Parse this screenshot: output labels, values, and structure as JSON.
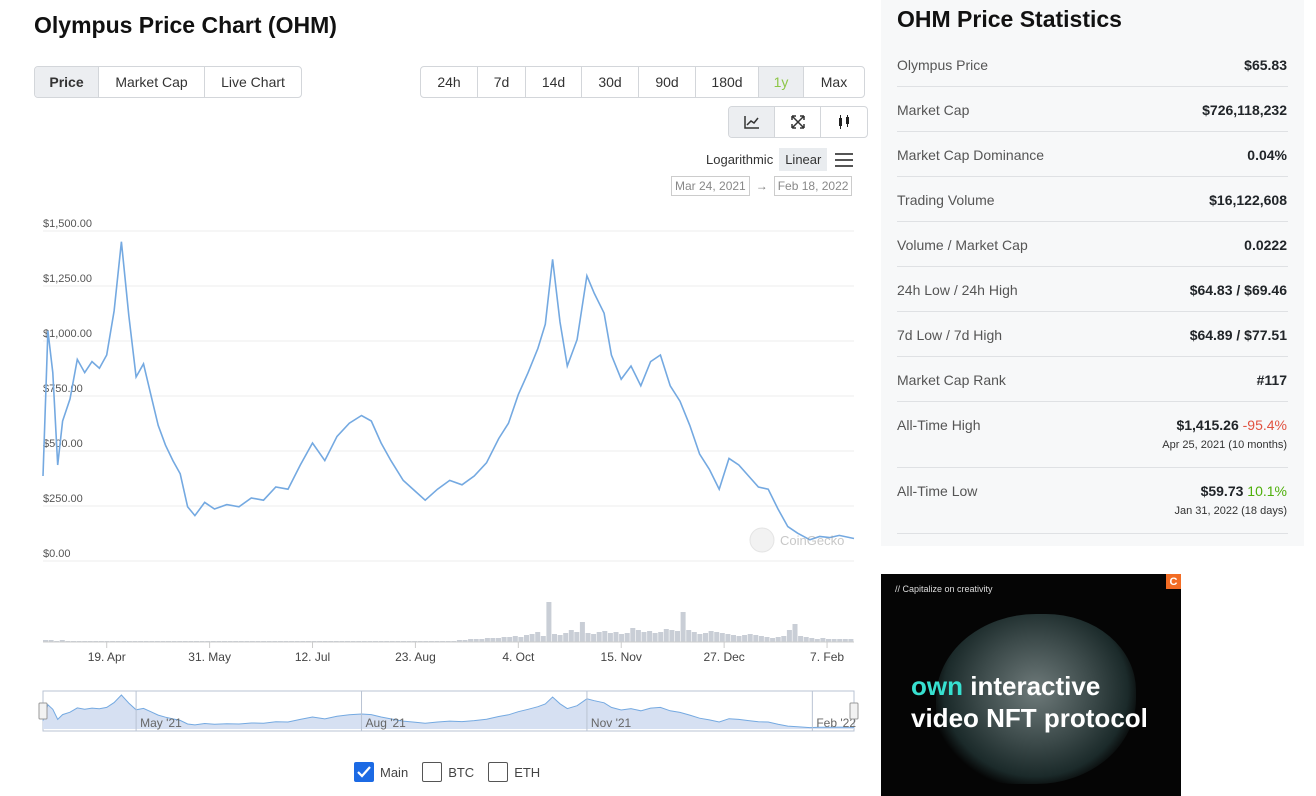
{
  "page_title": "Olympus Price Chart (OHM)",
  "chart_tabs": [
    {
      "label": "Price",
      "active": true
    },
    {
      "label": "Market Cap",
      "active": false
    },
    {
      "label": "Live Chart",
      "active": false
    }
  ],
  "ranges": [
    {
      "label": "24h",
      "active": false
    },
    {
      "label": "7d",
      "active": false
    },
    {
      "label": "14d",
      "active": false
    },
    {
      "label": "30d",
      "active": false
    },
    {
      "label": "90d",
      "active": false
    },
    {
      "label": "180d",
      "active": false
    },
    {
      "label": "1y",
      "active": true
    },
    {
      "label": "Max",
      "active": false
    }
  ],
  "chart_tools": [
    {
      "icon": "line-chart-icon",
      "active": true
    },
    {
      "icon": "expand-icon",
      "active": false
    },
    {
      "icon": "candlestick-icon",
      "active": false
    }
  ],
  "scale": {
    "log_label": "Logarithmic",
    "linear_label": "Linear",
    "selected": "Linear"
  },
  "date_range": {
    "from": "Mar 24, 2021",
    "arrow": "→",
    "to": "Feb 18, 2022"
  },
  "watermark": "CoinGecko",
  "colors": {
    "line": "#74a9e1",
    "volume": "#c5cbd3",
    "navigator_fill": "#d6e0f2",
    "accent_green": "#8dc647",
    "negative": "#e15241",
    "positive": "#4eaf0a"
  },
  "chart_data": {
    "type": "line",
    "title": "",
    "xlabel": "",
    "ylabel": "",
    "ylim": [
      0,
      1500
    ],
    "yticks": [
      "$0.00",
      "$250.00",
      "$500.00",
      "$750.00",
      "$1,000.00",
      "$1,250.00",
      "$1,500.00"
    ],
    "ytick_values": [
      0,
      250,
      500,
      750,
      1000,
      1250,
      1500
    ],
    "xtick_labels": [
      "19. Apr",
      "31. May",
      "12. Jul",
      "23. Aug",
      "4. Oct",
      "15. Nov",
      "27. Dec",
      "7. Feb"
    ],
    "xtick_dates": [
      "2021-04-19",
      "2021-05-31",
      "2021-07-12",
      "2021-08-23",
      "2021-10-04",
      "2021-11-15",
      "2021-12-27",
      "2022-02-07"
    ],
    "xlim": [
      "2021-03-24",
      "2022-02-18"
    ],
    "grid": true,
    "series": [
      {
        "values": [
          [
            "2021-03-24",
            350
          ],
          [
            "2021-03-26",
            1010
          ],
          [
            "2021-03-28",
            820
          ],
          [
            "2021-03-30",
            400
          ],
          [
            "2021-04-01",
            600
          ],
          [
            "2021-04-04",
            700
          ],
          [
            "2021-04-07",
            880
          ],
          [
            "2021-04-10",
            820
          ],
          [
            "2021-04-13",
            870
          ],
          [
            "2021-04-16",
            840
          ],
          [
            "2021-04-19",
            900
          ],
          [
            "2021-04-22",
            1100
          ],
          [
            "2021-04-25",
            1415
          ],
          [
            "2021-04-28",
            1080
          ],
          [
            "2021-05-01",
            800
          ],
          [
            "2021-05-04",
            860
          ],
          [
            "2021-05-07",
            720
          ],
          [
            "2021-05-10",
            580
          ],
          [
            "2021-05-13",
            490
          ],
          [
            "2021-05-16",
            420
          ],
          [
            "2021-05-19",
            360
          ],
          [
            "2021-05-22",
            210
          ],
          [
            "2021-05-25",
            170
          ],
          [
            "2021-05-29",
            230
          ],
          [
            "2021-06-02",
            200
          ],
          [
            "2021-06-07",
            220
          ],
          [
            "2021-06-12",
            210
          ],
          [
            "2021-06-17",
            250
          ],
          [
            "2021-06-22",
            240
          ],
          [
            "2021-06-27",
            300
          ],
          [
            "2021-07-02",
            290
          ],
          [
            "2021-07-07",
            400
          ],
          [
            "2021-07-12",
            500
          ],
          [
            "2021-07-17",
            420
          ],
          [
            "2021-07-22",
            530
          ],
          [
            "2021-07-27",
            590
          ],
          [
            "2021-08-01",
            625
          ],
          [
            "2021-08-05",
            600
          ],
          [
            "2021-08-09",
            500
          ],
          [
            "2021-08-13",
            420
          ],
          [
            "2021-08-18",
            330
          ],
          [
            "2021-08-23",
            280
          ],
          [
            "2021-08-27",
            240
          ],
          [
            "2021-09-01",
            290
          ],
          [
            "2021-09-06",
            330
          ],
          [
            "2021-09-11",
            310
          ],
          [
            "2021-09-16",
            350
          ],
          [
            "2021-09-21",
            410
          ],
          [
            "2021-09-26",
            520
          ],
          [
            "2021-09-30",
            590
          ],
          [
            "2021-10-04",
            720
          ],
          [
            "2021-10-08",
            820
          ],
          [
            "2021-10-12",
            930
          ],
          [
            "2021-10-15",
            1040
          ],
          [
            "2021-10-18",
            1335
          ],
          [
            "2021-10-21",
            1050
          ],
          [
            "2021-10-24",
            850
          ],
          [
            "2021-10-28",
            970
          ],
          [
            "2021-11-01",
            1260
          ],
          [
            "2021-11-04",
            1180
          ],
          [
            "2021-11-08",
            1090
          ],
          [
            "2021-11-11",
            900
          ],
          [
            "2021-11-15",
            790
          ],
          [
            "2021-11-19",
            850
          ],
          [
            "2021-11-23",
            760
          ],
          [
            "2021-11-27",
            870
          ],
          [
            "2021-12-01",
            900
          ],
          [
            "2021-12-05",
            760
          ],
          [
            "2021-12-09",
            690
          ],
          [
            "2021-12-13",
            580
          ],
          [
            "2021-12-17",
            450
          ],
          [
            "2021-12-21",
            380
          ],
          [
            "2021-12-25",
            290
          ],
          [
            "2021-12-29",
            430
          ],
          [
            "2022-01-02",
            400
          ],
          [
            "2022-01-06",
            350
          ],
          [
            "2022-01-10",
            300
          ],
          [
            "2022-01-14",
            290
          ],
          [
            "2022-01-18",
            200
          ],
          [
            "2022-01-22",
            120
          ],
          [
            "2022-01-26",
            90
          ],
          [
            "2022-01-31",
            60
          ],
          [
            "2022-02-04",
            75
          ],
          [
            "2022-02-08",
            70
          ],
          [
            "2022-02-12",
            80
          ],
          [
            "2022-02-18",
            66
          ]
        ]
      }
    ],
    "navigator_labels": [
      "May '21",
      "Aug '21",
      "Nov '21",
      "Feb '22"
    ],
    "navigator_dates": [
      "2021-05-01",
      "2021-08-01",
      "2021-11-01",
      "2022-02-01"
    ]
  },
  "compare": [
    {
      "label": "Main",
      "checked": true
    },
    {
      "label": "BTC",
      "checked": false
    },
    {
      "label": "ETH",
      "checked": false
    }
  ],
  "stats": {
    "title": "OHM Price Statistics",
    "rows": [
      {
        "label": "Olympus Price",
        "value": "$65.83"
      },
      {
        "label": "Market Cap",
        "value": "$726,118,232"
      },
      {
        "label": "Market Cap Dominance",
        "value": "0.04%"
      },
      {
        "label": "Trading Volume",
        "value": "$16,122,608"
      },
      {
        "label": "Volume / Market Cap",
        "value": "0.0222"
      },
      {
        "label": "24h Low / 24h High",
        "value": "$64.83 / $69.46"
      },
      {
        "label": "7d Low / 7d High",
        "value": "$64.89 / $77.51"
      },
      {
        "label": "Market Cap Rank",
        "value": "#117"
      }
    ],
    "ath": {
      "label": "All-Time High",
      "value": "$1,415.26",
      "change": "-95.4%",
      "date": "Apr 25, 2021 (10 months)"
    },
    "atl": {
      "label": "All-Time Low",
      "value": "$59.73",
      "change": "10.1%",
      "date": "Jan 31, 2022 (18 days)"
    }
  },
  "ad": {
    "caption": "// Capitalize on creativity",
    "badge": "C",
    "headline_accent": "own",
    "headline_rest": " interactive",
    "headline_line2": "video NFT protocol"
  }
}
